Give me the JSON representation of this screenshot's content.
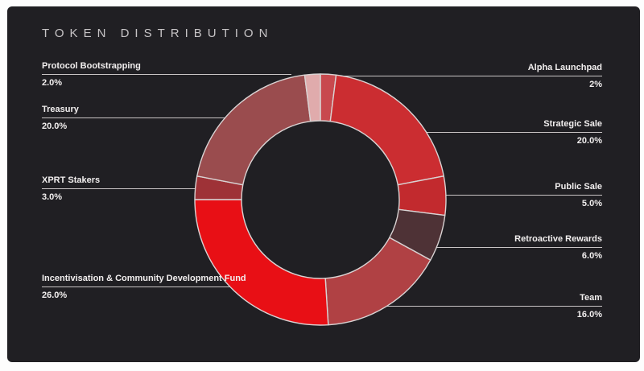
{
  "title": "TOKEN DISTRIBUTION",
  "colors": {
    "page_background": "#fdfdfd",
    "card_background": "#201f23",
    "title_text": "#c7c4c6",
    "label_text": "#f2efef",
    "leader_line": "#e8e2e2",
    "segment_stroke": "#d9d3d3"
  },
  "chart_data": {
    "type": "pie",
    "subtype": "donut",
    "title": "TOKEN DISTRIBUTION",
    "direction": "clockwise",
    "start_angle_deg": 0,
    "legend_position": "callout-labels",
    "categories": [
      "Alpha Launchpad",
      "Strategic Sale",
      "Public Sale",
      "Retroactive Rewards",
      "Team",
      "Incentivisation & Community Development Fund",
      "XPRT Stakers",
      "Treasury",
      "Protocol Bootstrapping"
    ],
    "values": [
      2,
      20,
      5,
      6,
      16,
      26,
      3,
      20,
      2
    ],
    "segments": [
      {
        "label": "Alpha Launchpad",
        "value": 2,
        "pct_label": "2%",
        "color": "#c8494e",
        "label_side": "right"
      },
      {
        "label": "Strategic Sale",
        "value": 20,
        "pct_label": "20.0%",
        "color": "#cb2d31",
        "label_side": "right"
      },
      {
        "label": "Public Sale",
        "value": 5,
        "pct_label": "5.0%",
        "color": "#c22a2e",
        "label_side": "right"
      },
      {
        "label": "Retroactive Rewards",
        "value": 6,
        "pct_label": "6.0%",
        "color": "#4e3236",
        "label_side": "right"
      },
      {
        "label": "Team",
        "value": 16,
        "pct_label": "16.0%",
        "color": "#b04144",
        "label_side": "right"
      },
      {
        "label": "Incentivisation & Community Development Fund",
        "value": 26,
        "pct_label": "26.0%",
        "color": "#e80f15",
        "label_side": "left"
      },
      {
        "label": "XPRT Stakers",
        "value": 3,
        "pct_label": "3.0%",
        "color": "#9e3237",
        "label_side": "left"
      },
      {
        "label": "Treasury",
        "value": 20,
        "pct_label": "20.0%",
        "color": "#9a4c4e",
        "label_side": "left"
      },
      {
        "label": "Protocol Bootstrapping",
        "value": 2,
        "pct_label": "2.0%",
        "color": "#e0abac",
        "label_side": "left"
      }
    ],
    "donut_geometry": {
      "outer_radius": 156,
      "inner_radius": 98
    }
  }
}
